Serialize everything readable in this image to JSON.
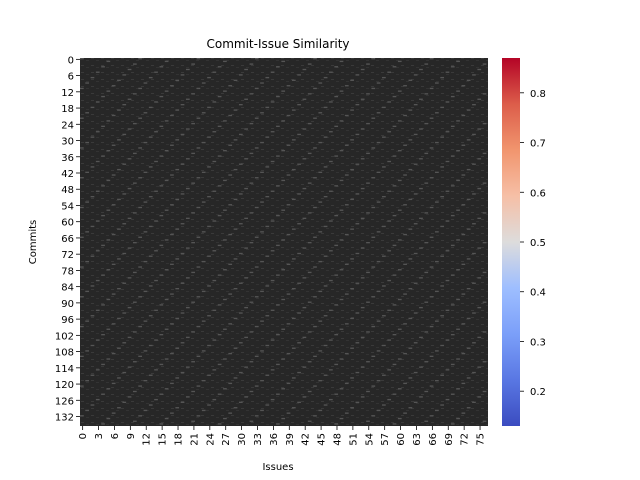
{
  "chart_data": {
    "type": "heatmap",
    "title": "Commit-Issue Similarity",
    "xlabel": "Issues",
    "ylabel": "Commits",
    "n_rows": 136,
    "n_cols": 77,
    "row_ticks": [
      "0",
      "6",
      "12",
      "18",
      "24",
      "30",
      "36",
      "42",
      "48",
      "54",
      "60",
      "66",
      "72",
      "78",
      "84",
      "90",
      "96",
      "102",
      "108",
      "114",
      "120",
      "126",
      "132"
    ],
    "col_ticks": [
      "0",
      "3",
      "6",
      "9",
      "12",
      "15",
      "18",
      "21",
      "24",
      "27",
      "30",
      "33",
      "36",
      "39",
      "42",
      "45",
      "48",
      "51",
      "54",
      "57",
      "60",
      "63",
      "66",
      "69",
      "72",
      "75"
    ],
    "colorbar": {
      "colormap": "coolwarm",
      "vmin": 0.13,
      "vmax": 0.87,
      "ticks": [
        "0.2",
        "0.3",
        "0.4",
        "0.5",
        "0.6",
        "0.7",
        "0.8"
      ]
    },
    "annotated": true,
    "annotation_format": "0.00",
    "cell_text_color": "#000000",
    "dominant_cell_color": "#2b2b2b"
  }
}
